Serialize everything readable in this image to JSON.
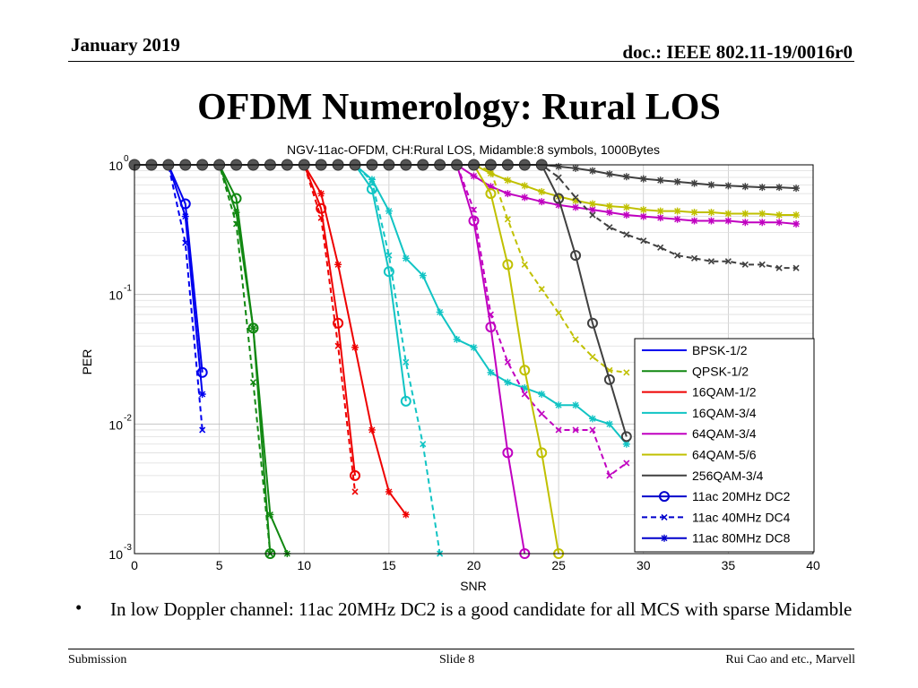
{
  "header": {
    "date": "January 2019",
    "doc": "doc.: IEEE 802.11-19/0016r0"
  },
  "slide_title": "OFDM Numerology: Rural LOS",
  "bullet": {
    "marker": "•",
    "text": "In low Doppler channel: 11ac 20MHz DC2 is a good candidate for all MCS with sparse Midamble"
  },
  "footer": {
    "left": "Submission",
    "center": "Slide 8",
    "right": "Rui Cao and etc., Marvell"
  },
  "chart_data": {
    "type": "line",
    "title": "NGV-11ac-OFDM, CH:Rural LOS, Midamble:8 symbols, 1000Bytes",
    "xlabel": "SNR",
    "ylabel": "PER",
    "xlim": [
      0,
      40
    ],
    "ylim": [
      0.001,
      1
    ],
    "yscale": "log",
    "grid": true,
    "xticks": [
      "0",
      "5",
      "10",
      "15",
      "20",
      "25",
      "30",
      "35",
      "40"
    ],
    "yticks": [
      {
        "value": 1,
        "base": "10",
        "exp": "0"
      },
      {
        "value": 0.1,
        "base": "10",
        "exp": "-1"
      },
      {
        "value": 0.01,
        "base": "10",
        "exp": "-2"
      },
      {
        "value": 0.001,
        "base": "10",
        "exp": "-3"
      }
    ],
    "legend_position": "bottom-right",
    "legend": [
      {
        "label": "BPSK-1/2",
        "color": "#0000ee",
        "style": "solid",
        "marker": "none"
      },
      {
        "label": "QPSK-1/2",
        "color": "#118811",
        "style": "solid",
        "marker": "none"
      },
      {
        "label": "16QAM-1/2",
        "color": "#ee0000",
        "style": "solid",
        "marker": "none"
      },
      {
        "label": "16QAM-3/4",
        "color": "#11c4c4",
        "style": "solid",
        "marker": "none"
      },
      {
        "label": "64QAM-3/4",
        "color": "#c000c0",
        "style": "solid",
        "marker": "none"
      },
      {
        "label": "64QAM-5/6",
        "color": "#c0c000",
        "style": "solid",
        "marker": "none"
      },
      {
        "label": "256QAM-3/4",
        "color": "#404040",
        "style": "solid",
        "marker": "none"
      },
      {
        "label": "11ac 20MHz DC2",
        "color": "#0000cc",
        "style": "solid",
        "marker": "circle"
      },
      {
        "label": "11ac 40MHz DC4",
        "color": "#0000cc",
        "style": "dashed",
        "marker": "x"
      },
      {
        "label": "11ac 80MHz DC8",
        "color": "#0000cc",
        "style": "solid",
        "marker": "star"
      }
    ],
    "series": [
      {
        "name": "BPSK-1/2 / 11ac 20MHz DC2",
        "color": "#0000ee",
        "dash": false,
        "marker": "circle",
        "x": [
          0,
          1,
          2,
          3,
          4
        ],
        "y": [
          1,
          1,
          1,
          0.5,
          0.025
        ]
      },
      {
        "name": "BPSK-1/2 / 11ac 40MHz DC4",
        "color": "#0000ee",
        "dash": true,
        "marker": "x",
        "x": [
          0,
          1,
          2,
          3,
          4
        ],
        "y": [
          1,
          1,
          1,
          0.25,
          0.009
        ]
      },
      {
        "name": "BPSK-1/2 / 11ac 80MHz DC8",
        "color": "#0000ee",
        "dash": false,
        "marker": "star",
        "x": [
          0,
          1,
          2,
          3,
          4
        ],
        "y": [
          1,
          1,
          1,
          0.4,
          0.017
        ]
      },
      {
        "name": "QPSK-1/2 / 11ac 20MHz DC2",
        "color": "#118811",
        "dash": false,
        "marker": "circle",
        "x": [
          0,
          1,
          2,
          3,
          4,
          5,
          6,
          7,
          8
        ],
        "y": [
          1,
          1,
          1,
          1,
          1,
          1,
          0.55,
          0.055,
          0.001
        ]
      },
      {
        "name": "QPSK-1/2 / 11ac 40MHz DC4",
        "color": "#118811",
        "dash": true,
        "marker": "x",
        "x": [
          0,
          1,
          2,
          3,
          4,
          5,
          6,
          7,
          8
        ],
        "y": [
          1,
          1,
          1,
          1,
          1,
          1,
          0.35,
          0.021,
          0.001
        ]
      },
      {
        "name": "QPSK-1/2 / 11ac 80MHz DC8",
        "color": "#118811",
        "dash": false,
        "marker": "star",
        "x": [
          0,
          1,
          2,
          3,
          4,
          5,
          6,
          7,
          8,
          9
        ],
        "y": [
          1,
          1,
          1,
          1,
          1,
          1,
          0.43,
          0.055,
          0.002,
          0.001
        ]
      },
      {
        "name": "16QAM-1/2 / 11ac 20MHz DC2",
        "color": "#ee0000",
        "dash": false,
        "marker": "circle",
        "x": [
          0,
          2,
          4,
          6,
          8,
          10,
          11,
          12,
          13
        ],
        "y": [
          1,
          1,
          1,
          1,
          1,
          1,
          0.46,
          0.06,
          0.004
        ]
      },
      {
        "name": "16QAM-1/2 / 11ac 40MHz DC4",
        "color": "#ee0000",
        "dash": true,
        "marker": "x",
        "x": [
          0,
          2,
          4,
          6,
          8,
          10,
          11,
          12,
          13
        ],
        "y": [
          1,
          1,
          1,
          1,
          1,
          1,
          0.39,
          0.04,
          0.003
        ]
      },
      {
        "name": "16QAM-1/2 / 11ac 80MHz DC8",
        "color": "#ee0000",
        "dash": false,
        "marker": "star",
        "x": [
          0,
          2,
          4,
          6,
          8,
          10,
          11,
          12,
          13,
          14,
          15,
          16
        ],
        "y": [
          1,
          1,
          1,
          1,
          1,
          1,
          0.6,
          0.17,
          0.039,
          0.009,
          0.003,
          0.002
        ]
      },
      {
        "name": "16QAM-3/4 / 11ac 20MHz DC2",
        "color": "#11c4c4",
        "dash": false,
        "marker": "circle",
        "x": [
          0,
          4,
          8,
          12,
          13,
          14,
          15,
          16
        ],
        "y": [
          1,
          1,
          1,
          1,
          1,
          0.65,
          0.15,
          0.015
        ]
      },
      {
        "name": "16QAM-3/4 / 11ac 40MHz DC4",
        "color": "#11c4c4",
        "dash": true,
        "marker": "x",
        "x": [
          0,
          4,
          8,
          12,
          13,
          14,
          15,
          16,
          17,
          18
        ],
        "y": [
          1,
          1,
          1,
          1,
          1,
          0.75,
          0.2,
          0.03,
          0.007,
          0.001
        ]
      },
      {
        "name": "16QAM-3/4 / 11ac 80MHz DC8",
        "color": "#11c4c4",
        "dash": false,
        "marker": "star",
        "x": [
          0,
          4,
          8,
          12,
          13,
          14,
          15,
          16,
          17,
          18,
          19,
          20,
          21,
          22,
          23,
          24,
          25,
          26,
          27,
          28,
          29
        ],
        "y": [
          1,
          1,
          1,
          1,
          1,
          0.77,
          0.44,
          0.19,
          0.14,
          0.073,
          0.045,
          0.039,
          0.025,
          0.021,
          0.019,
          0.017,
          0.014,
          0.014,
          0.011,
          0.01,
          0.007
        ]
      },
      {
        "name": "64QAM-3/4 / 11ac 20MHz DC2",
        "color": "#c000c0",
        "dash": false,
        "marker": "circle",
        "x": [
          0,
          5,
          10,
          15,
          18,
          19,
          20,
          21,
          22,
          23
        ],
        "y": [
          1,
          1,
          1,
          1,
          1,
          1,
          0.37,
          0.056,
          0.006,
          0.001
        ]
      },
      {
        "name": "64QAM-3/4 / 11ac 40MHz DC4",
        "color": "#c000c0",
        "dash": true,
        "marker": "x",
        "x": [
          0,
          5,
          10,
          15,
          18,
          19,
          20,
          21,
          22,
          23,
          24,
          25,
          26,
          27,
          28,
          29
        ],
        "y": [
          1,
          1,
          1,
          1,
          1,
          1,
          0.45,
          0.07,
          0.03,
          0.017,
          0.012,
          0.009,
          0.009,
          0.009,
          0.004,
          0.005
        ]
      },
      {
        "name": "64QAM-3/4 / 11ac 80MHz DC8",
        "color": "#c000c0",
        "dash": false,
        "marker": "star",
        "x": [
          0,
          5,
          10,
          15,
          18,
          19,
          20,
          21,
          22,
          23,
          24,
          25,
          26,
          27,
          28,
          29,
          30,
          31,
          32,
          33,
          34,
          35,
          36,
          37,
          38,
          39
        ],
        "y": [
          1,
          1,
          1,
          1,
          1,
          1,
          0.82,
          0.68,
          0.6,
          0.56,
          0.52,
          0.49,
          0.47,
          0.45,
          0.43,
          0.41,
          0.4,
          0.39,
          0.38,
          0.37,
          0.37,
          0.37,
          0.36,
          0.36,
          0.36,
          0.35
        ]
      },
      {
        "name": "64QAM-5/6 / 11ac 20MHz DC2",
        "color": "#c0c000",
        "dash": false,
        "marker": "circle",
        "x": [
          0,
          5,
          10,
          15,
          19,
          20,
          21,
          22,
          23,
          24,
          25
        ],
        "y": [
          1,
          1,
          1,
          1,
          1,
          1,
          0.6,
          0.17,
          0.026,
          0.006,
          0.001
        ]
      },
      {
        "name": "64QAM-5/6 / 11ac 40MHz DC4",
        "color": "#c0c000",
        "dash": true,
        "marker": "x",
        "x": [
          0,
          5,
          10,
          15,
          19,
          20,
          21,
          22,
          23,
          24,
          25,
          26,
          27,
          28,
          29
        ],
        "y": [
          1,
          1,
          1,
          1,
          1,
          1,
          0.9,
          0.38,
          0.17,
          0.11,
          0.072,
          0.045,
          0.033,
          0.026,
          0.025
        ]
      },
      {
        "name": "64QAM-5/6 / 11ac 80MHz DC8",
        "color": "#c0c000",
        "dash": false,
        "marker": "star",
        "x": [
          0,
          5,
          10,
          15,
          19,
          20,
          21,
          22,
          23,
          24,
          25,
          26,
          27,
          28,
          29,
          30,
          31,
          32,
          33,
          34,
          35,
          36,
          37,
          38,
          39
        ],
        "y": [
          1,
          1,
          1,
          1,
          1,
          1,
          0.86,
          0.76,
          0.69,
          0.62,
          0.57,
          0.53,
          0.5,
          0.48,
          0.47,
          0.45,
          0.44,
          0.44,
          0.43,
          0.43,
          0.42,
          0.42,
          0.42,
          0.41,
          0.41
        ]
      },
      {
        "name": "256QAM-3/4 / 11ac 20MHz DC2",
        "color": "#404040",
        "dash": false,
        "marker": "circle",
        "x": [
          0,
          5,
          10,
          15,
          20,
          24,
          25,
          26,
          27,
          28,
          29
        ],
        "y": [
          1,
          1,
          1,
          1,
          1,
          1,
          0.55,
          0.2,
          0.06,
          0.022,
          0.008
        ]
      },
      {
        "name": "256QAM-3/4 / 11ac 40MHz DC4",
        "color": "#404040",
        "dash": true,
        "marker": "x",
        "x": [
          0,
          5,
          10,
          15,
          20,
          24,
          25,
          26,
          27,
          28,
          29,
          30,
          31,
          32,
          33,
          34,
          35,
          36,
          37,
          38,
          39
        ],
        "y": [
          1,
          1,
          1,
          1,
          1,
          1,
          0.8,
          0.56,
          0.41,
          0.33,
          0.29,
          0.26,
          0.23,
          0.2,
          0.19,
          0.18,
          0.18,
          0.17,
          0.17,
          0.16,
          0.16
        ]
      },
      {
        "name": "256QAM-3/4 / 11ac 80MHz DC8",
        "color": "#404040",
        "dash": false,
        "marker": "star",
        "x": [
          0,
          5,
          10,
          15,
          20,
          24,
          25,
          26,
          27,
          28,
          29,
          30,
          31,
          32,
          33,
          34,
          35,
          36,
          37,
          38,
          39
        ],
        "y": [
          1,
          1,
          1,
          1,
          1,
          1,
          0.97,
          0.94,
          0.9,
          0.85,
          0.81,
          0.78,
          0.76,
          0.74,
          0.72,
          0.7,
          0.69,
          0.68,
          0.67,
          0.67,
          0.66
        ]
      },
      {
        "name": "Midamble 8 common markers",
        "color": "#444444",
        "dash": false,
        "marker": "filled-circle",
        "x": [
          0,
          1,
          2,
          3,
          4,
          5,
          6,
          7,
          8,
          9,
          10,
          11,
          12,
          13,
          14,
          15,
          16,
          17,
          18,
          19,
          20,
          21,
          22,
          23,
          24
        ],
        "y": [
          1,
          1,
          1,
          1,
          1,
          1,
          1,
          1,
          1,
          1,
          1,
          1,
          1,
          1,
          1,
          1,
          1,
          1,
          1,
          1,
          1,
          1,
          1,
          1,
          1
        ]
      }
    ]
  }
}
